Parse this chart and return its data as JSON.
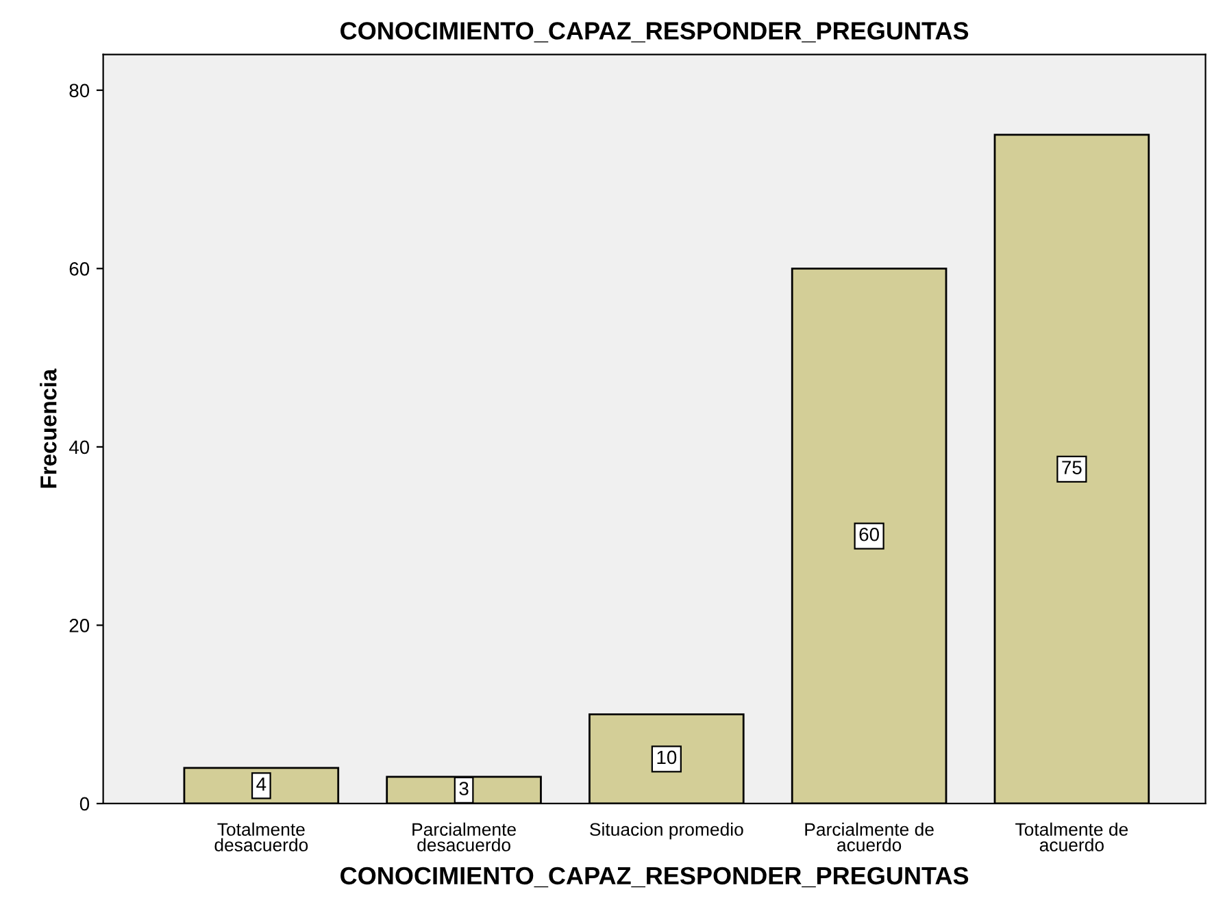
{
  "chart_data": {
    "type": "bar",
    "title": "CONOCIMIENTO_CAPAZ_RESPONDER_PREGUNTAS",
    "xlabel": "CONOCIMIENTO_CAPAZ_RESPONDER_PREGUNTAS",
    "ylabel": "Frecuencia",
    "categories": [
      "Totalmente\ndesacuerdo",
      "Parcialmente\ndesacuerdo",
      "Situacion promedio",
      "Parcialmente de\nacuerdo",
      "Totalmente de\nacuerdo"
    ],
    "values": [
      4,
      3,
      10,
      60,
      75
    ],
    "color": "#d3ce97",
    "ylim": [
      0,
      84
    ],
    "yticks": [
      0,
      20,
      40,
      60,
      80
    ],
    "grid": false,
    "data_labels": true
  }
}
